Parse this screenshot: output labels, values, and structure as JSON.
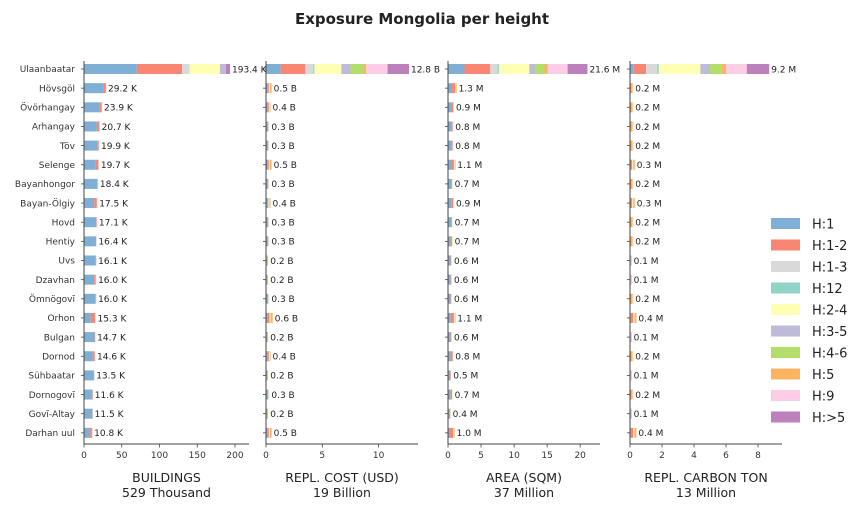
{
  "chart_data": {
    "type": "bar",
    "orientation": "horizontal",
    "stacked": true,
    "title": "Exposure Mongolia per height",
    "categories": [
      "Ulaanbaatar",
      "Hövsgöl",
      "Övörhangay",
      "Arhangay",
      "Töv",
      "Selenge",
      "Bayanhongor",
      "Bayan-Ölgiy",
      "Hovd",
      "Hentiy",
      "Uvs",
      "Dzavhan",
      "Ömnögovĭ",
      "Orhon",
      "Bulgan",
      "Dornod",
      "Sühbaatar",
      "Dornogovĭ",
      "Govĭ-Altay",
      "Darhan uul"
    ],
    "legend": {
      "position": "right",
      "entries": [
        {
          "name": "H:1",
          "color": "#7fafd4"
        },
        {
          "name": "H:1-2",
          "color": "#f88672"
        },
        {
          "name": "H:1-3",
          "color": "#d9d9d9"
        },
        {
          "name": "H:12",
          "color": "#8fd3c7"
        },
        {
          "name": "H:2-4",
          "color": "#ffffb3"
        },
        {
          "name": "H:3-5",
          "color": "#bebada"
        },
        {
          "name": "H:4-6",
          "color": "#b3de69"
        },
        {
          "name": "H:5",
          "color": "#fdb462"
        },
        {
          "name": "H:9",
          "color": "#fccde5"
        },
        {
          "name": "H:>5",
          "color": "#bc80bd"
        }
      ]
    },
    "panels": [
      {
        "xlabel": "BUILDINGS",
        "total": "529 Thousand",
        "xlim": [
          0,
          200
        ],
        "ticks": [
          0,
          50,
          100,
          150,
          200
        ],
        "data_labels": [
          "193.4 K",
          "29.2 K",
          "23.9 K",
          "20.7 K",
          "19.9 K",
          "19.7 K",
          "18.4 K",
          "17.5 K",
          "17.1 K",
          "16.4 K",
          "16.1 K",
          "16.0 K",
          "16.0 K",
          "15.3 K",
          "14.7 K",
          "14.6 K",
          "13.5 K",
          "11.6 K",
          "11.5 K",
          "10.8 K"
        ],
        "stacks": [
          [
            70,
            60,
            10,
            0,
            40,
            8,
            0,
            0,
            0,
            5.4
          ],
          [
            26,
            3,
            0.2,
            0,
            0,
            0,
            0,
            0,
            0,
            0
          ],
          [
            20,
            3.5,
            0.4,
            0,
            0,
            0,
            0,
            0,
            0,
            0
          ],
          [
            17,
            3.2,
            0.5,
            0,
            0,
            0,
            0,
            0,
            0,
            0
          ],
          [
            17.5,
            2,
            0.4,
            0,
            0,
            0,
            0,
            0,
            0,
            0
          ],
          [
            15,
            4,
            0.7,
            0,
            0,
            0,
            0,
            0,
            0,
            0
          ],
          [
            17.5,
            0.6,
            0.3,
            0,
            0,
            0,
            0,
            0,
            0,
            0
          ],
          [
            13.5,
            3.5,
            0.5,
            0,
            0,
            0,
            0,
            0,
            0,
            0
          ],
          [
            16,
            0.8,
            0.3,
            0,
            0,
            0,
            0,
            0,
            0,
            0
          ],
          [
            14.5,
            1.5,
            0.4,
            0,
            0,
            0,
            0,
            0,
            0,
            0
          ],
          [
            15.5,
            0.4,
            0.2,
            0,
            0,
            0,
            0,
            0,
            0,
            0
          ],
          [
            13.5,
            2,
            0.5,
            0,
            0,
            0,
            0,
            0,
            0,
            0
          ],
          [
            15,
            0.7,
            0.3,
            0,
            0,
            0,
            0,
            0,
            0,
            0
          ],
          [
            9,
            5.5,
            0.8,
            0,
            0,
            0,
            0,
            0,
            0,
            0
          ],
          [
            14,
            0.5,
            0.2,
            0,
            0,
            0,
            0,
            0,
            0,
            0
          ],
          [
            11.5,
            2.7,
            0.4,
            0,
            0,
            0,
            0,
            0,
            0,
            0
          ],
          [
            12.5,
            0.7,
            0.3,
            0,
            0,
            0,
            0,
            0,
            0,
            0
          ],
          [
            10.5,
            0.8,
            0.3,
            0,
            0,
            0,
            0,
            0,
            0,
            0
          ],
          [
            11,
            0.3,
            0.2,
            0,
            0,
            0,
            0,
            0,
            0,
            0
          ],
          [
            7.5,
            3,
            0.3,
            0,
            0,
            0,
            0,
            0,
            0,
            0
          ]
        ]
      },
      {
        "xlabel": "REPL. COST (USD)",
        "total": "19 Billion",
        "xlim": [
          0,
          13.5
        ],
        "ticks": [
          0,
          5,
          10
        ],
        "data_labels": [
          "12.8 B",
          "0.5 B",
          "0.4 B",
          "0.3 B",
          "0.3 B",
          "0.5 B",
          "0.3 B",
          "0.4 B",
          "0.3 B",
          "0.3 B",
          "0.2 B",
          "0.2 B",
          "0.3 B",
          "0.6 B",
          "0.2 B",
          "0.4 B",
          "0.2 B",
          "0.3 B",
          "0.2 B",
          "0.5 B"
        ],
        "stacks": [
          [
            1.3,
            2.2,
            0.7,
            0.1,
            2.4,
            0.8,
            1.2,
            0.2,
            1.9,
            1.9
          ],
          [
            0.1,
            0.15,
            0.05,
            0,
            0.05,
            0,
            0,
            0.15,
            0,
            0
          ],
          [
            0.1,
            0.15,
            0.05,
            0,
            0.05,
            0,
            0,
            0.05,
            0,
            0
          ],
          [
            0.1,
            0.1,
            0.05,
            0,
            0.05,
            0,
            0,
            0,
            0,
            0
          ],
          [
            0.1,
            0.1,
            0.05,
            0,
            0.05,
            0,
            0,
            0,
            0,
            0
          ],
          [
            0.1,
            0.15,
            0.05,
            0,
            0.05,
            0,
            0,
            0.15,
            0,
            0
          ],
          [
            0.1,
            0.1,
            0.05,
            0,
            0.05,
            0,
            0,
            0,
            0,
            0
          ],
          [
            0.1,
            0.1,
            0.05,
            0,
            0.05,
            0,
            0,
            0.1,
            0,
            0
          ],
          [
            0.1,
            0.1,
            0.05,
            0,
            0.05,
            0,
            0,
            0,
            0,
            0
          ],
          [
            0.1,
            0.1,
            0.05,
            0,
            0.05,
            0,
            0,
            0,
            0,
            0
          ],
          [
            0.08,
            0.06,
            0.03,
            0,
            0.03,
            0,
            0,
            0,
            0,
            0
          ],
          [
            0.08,
            0.06,
            0.03,
            0,
            0.03,
            0,
            0,
            0,
            0,
            0
          ],
          [
            0.1,
            0.1,
            0.05,
            0,
            0.05,
            0,
            0,
            0,
            0,
            0
          ],
          [
            0.1,
            0.2,
            0.05,
            0,
            0.05,
            0,
            0,
            0.2,
            0,
            0
          ],
          [
            0.08,
            0.06,
            0.03,
            0,
            0.03,
            0,
            0,
            0,
            0,
            0
          ],
          [
            0.1,
            0.15,
            0.05,
            0,
            0.05,
            0,
            0,
            0.05,
            0,
            0
          ],
          [
            0.08,
            0.06,
            0.03,
            0,
            0.03,
            0,
            0,
            0,
            0,
            0
          ],
          [
            0.1,
            0.1,
            0.05,
            0,
            0.05,
            0,
            0,
            0,
            0,
            0
          ],
          [
            0.08,
            0.06,
            0.03,
            0,
            0.03,
            0,
            0,
            0,
            0,
            0
          ],
          [
            0.1,
            0.15,
            0.05,
            0,
            0.05,
            0,
            0,
            0.15,
            0,
            0
          ]
        ]
      },
      {
        "xlabel": "AREA (SQM)",
        "total": "37 Million",
        "xlim": [
          0,
          23
        ],
        "ticks": [
          0,
          5,
          10,
          15,
          20
        ],
        "data_labels": [
          "21.6 M",
          "1.3 M",
          "0.9 M",
          "0.8 M",
          "0.8 M",
          "1.1 M",
          "0.7 M",
          "0.9 M",
          "0.7 M",
          "0.7 M",
          "0.6 M",
          "0.6 M",
          "0.6 M",
          "1.1 M",
          "0.6 M",
          "0.8 M",
          "0.5 M",
          "0.7 M",
          "0.4 M",
          "1.0 M"
        ],
        "stacks": [
          [
            2.5,
            3.9,
            1.1,
            0.2,
            4.6,
            1.0,
            1.3,
            0.5,
            3.0,
            3.0
          ],
          [
            0.6,
            0.5,
            0.1,
            0,
            0.05,
            0,
            0,
            0.05,
            0,
            0
          ],
          [
            0.6,
            0.2,
            0.05,
            0,
            0.05,
            0,
            0,
            0,
            0,
            0
          ],
          [
            0.5,
            0.2,
            0.05,
            0,
            0.05,
            0,
            0,
            0,
            0,
            0
          ],
          [
            0.5,
            0.2,
            0.05,
            0,
            0.05,
            0,
            0,
            0,
            0,
            0
          ],
          [
            0.6,
            0.3,
            0.1,
            0,
            0.05,
            0,
            0,
            0.05,
            0,
            0
          ],
          [
            0.5,
            0.1,
            0.05,
            0,
            0.05,
            0,
            0,
            0,
            0,
            0
          ],
          [
            0.5,
            0.3,
            0.05,
            0,
            0.05,
            0,
            0,
            0,
            0,
            0
          ],
          [
            0.5,
            0.1,
            0.05,
            0,
            0.05,
            0,
            0,
            0,
            0,
            0
          ],
          [
            0.4,
            0.2,
            0.05,
            0,
            0.05,
            0,
            0,
            0,
            0,
            0
          ],
          [
            0.4,
            0.1,
            0.05,
            0,
            0.05,
            0,
            0,
            0,
            0,
            0
          ],
          [
            0.4,
            0.1,
            0.05,
            0,
            0.05,
            0,
            0,
            0,
            0,
            0
          ],
          [
            0.4,
            0.1,
            0.05,
            0,
            0.05,
            0,
            0,
            0,
            0,
            0
          ],
          [
            0.4,
            0.5,
            0.1,
            0,
            0.05,
            0,
            0,
            0.05,
            0,
            0
          ],
          [
            0.4,
            0.1,
            0.05,
            0,
            0.05,
            0,
            0,
            0,
            0,
            0
          ],
          [
            0.4,
            0.3,
            0.05,
            0,
            0.05,
            0,
            0,
            0,
            0,
            0
          ],
          [
            0.3,
            0.1,
            0.05,
            0,
            0.05,
            0,
            0,
            0,
            0,
            0
          ],
          [
            0.4,
            0.2,
            0.05,
            0,
            0.05,
            0,
            0,
            0,
            0,
            0
          ],
          [
            0.25,
            0.1,
            0.03,
            0,
            0.02,
            0,
            0,
            0,
            0,
            0
          ],
          [
            0.3,
            0.5,
            0.05,
            0,
            0.05,
            0,
            0,
            0.1,
            0,
            0
          ]
        ]
      },
      {
        "xlabel": "REPL. CARBON TON",
        "total": "13 Million",
        "xlim": [
          0,
          9.5
        ],
        "ticks": [
          0,
          2,
          4,
          6,
          8
        ],
        "data_labels": [
          "9.2 M",
          "0.2 M",
          "0.2 M",
          "0.2 M",
          "0.2 M",
          "0.3 M",
          "0.2 M",
          "0.3 M",
          "0.2 M",
          "0.2 M",
          "0.1 M",
          "0.1 M",
          "0.2 M",
          "0.4 M",
          "0.1 M",
          "0.2 M",
          "0.1 M",
          "0.2 M",
          "0.1 M",
          "0.4 M"
        ],
        "stacks": [
          [
            0.2,
            0.8,
            0.7,
            0.1,
            2.6,
            0.6,
            0.7,
            0.3,
            1.3,
            1.4
          ],
          [
            0.02,
            0.08,
            0.03,
            0,
            0.02,
            0,
            0,
            0.05,
            0,
            0
          ],
          [
            0.02,
            0.08,
            0.03,
            0,
            0.02,
            0,
            0,
            0.05,
            0,
            0
          ],
          [
            0.02,
            0.08,
            0.03,
            0,
            0.02,
            0,
            0,
            0.05,
            0,
            0
          ],
          [
            0.02,
            0.08,
            0.03,
            0,
            0.02,
            0,
            0,
            0.05,
            0,
            0
          ],
          [
            0.03,
            0.1,
            0.04,
            0,
            0.03,
            0,
            0,
            0.1,
            0,
            0
          ],
          [
            0.02,
            0.08,
            0.03,
            0,
            0.02,
            0,
            0,
            0.05,
            0,
            0
          ],
          [
            0.03,
            0.1,
            0.04,
            0,
            0.03,
            0,
            0,
            0.1,
            0,
            0
          ],
          [
            0.02,
            0.08,
            0.03,
            0,
            0.02,
            0,
            0,
            0.05,
            0,
            0
          ],
          [
            0.02,
            0.08,
            0.03,
            0,
            0.02,
            0,
            0,
            0.05,
            0,
            0
          ],
          [
            0.01,
            0.04,
            0.02,
            0,
            0.01,
            0,
            0,
            0.02,
            0,
            0
          ],
          [
            0.01,
            0.04,
            0.02,
            0,
            0.01,
            0,
            0,
            0.02,
            0,
            0
          ],
          [
            0.02,
            0.08,
            0.03,
            0,
            0.02,
            0,
            0,
            0.05,
            0,
            0
          ],
          [
            0.04,
            0.15,
            0.05,
            0,
            0.04,
            0,
            0,
            0.12,
            0,
            0
          ],
          [
            0.01,
            0.04,
            0.02,
            0,
            0.01,
            0,
            0,
            0.02,
            0,
            0
          ],
          [
            0.02,
            0.08,
            0.03,
            0,
            0.02,
            0,
            0,
            0.05,
            0,
            0
          ],
          [
            0.01,
            0.04,
            0.02,
            0,
            0.01,
            0,
            0,
            0.02,
            0,
            0
          ],
          [
            0.02,
            0.08,
            0.03,
            0,
            0.02,
            0,
            0,
            0.05,
            0,
            0
          ],
          [
            0.01,
            0.04,
            0.02,
            0,
            0.01,
            0,
            0,
            0.02,
            0,
            0
          ],
          [
            0.04,
            0.15,
            0.05,
            0,
            0.04,
            0,
            0,
            0.12,
            0,
            0
          ]
        ]
      }
    ]
  }
}
